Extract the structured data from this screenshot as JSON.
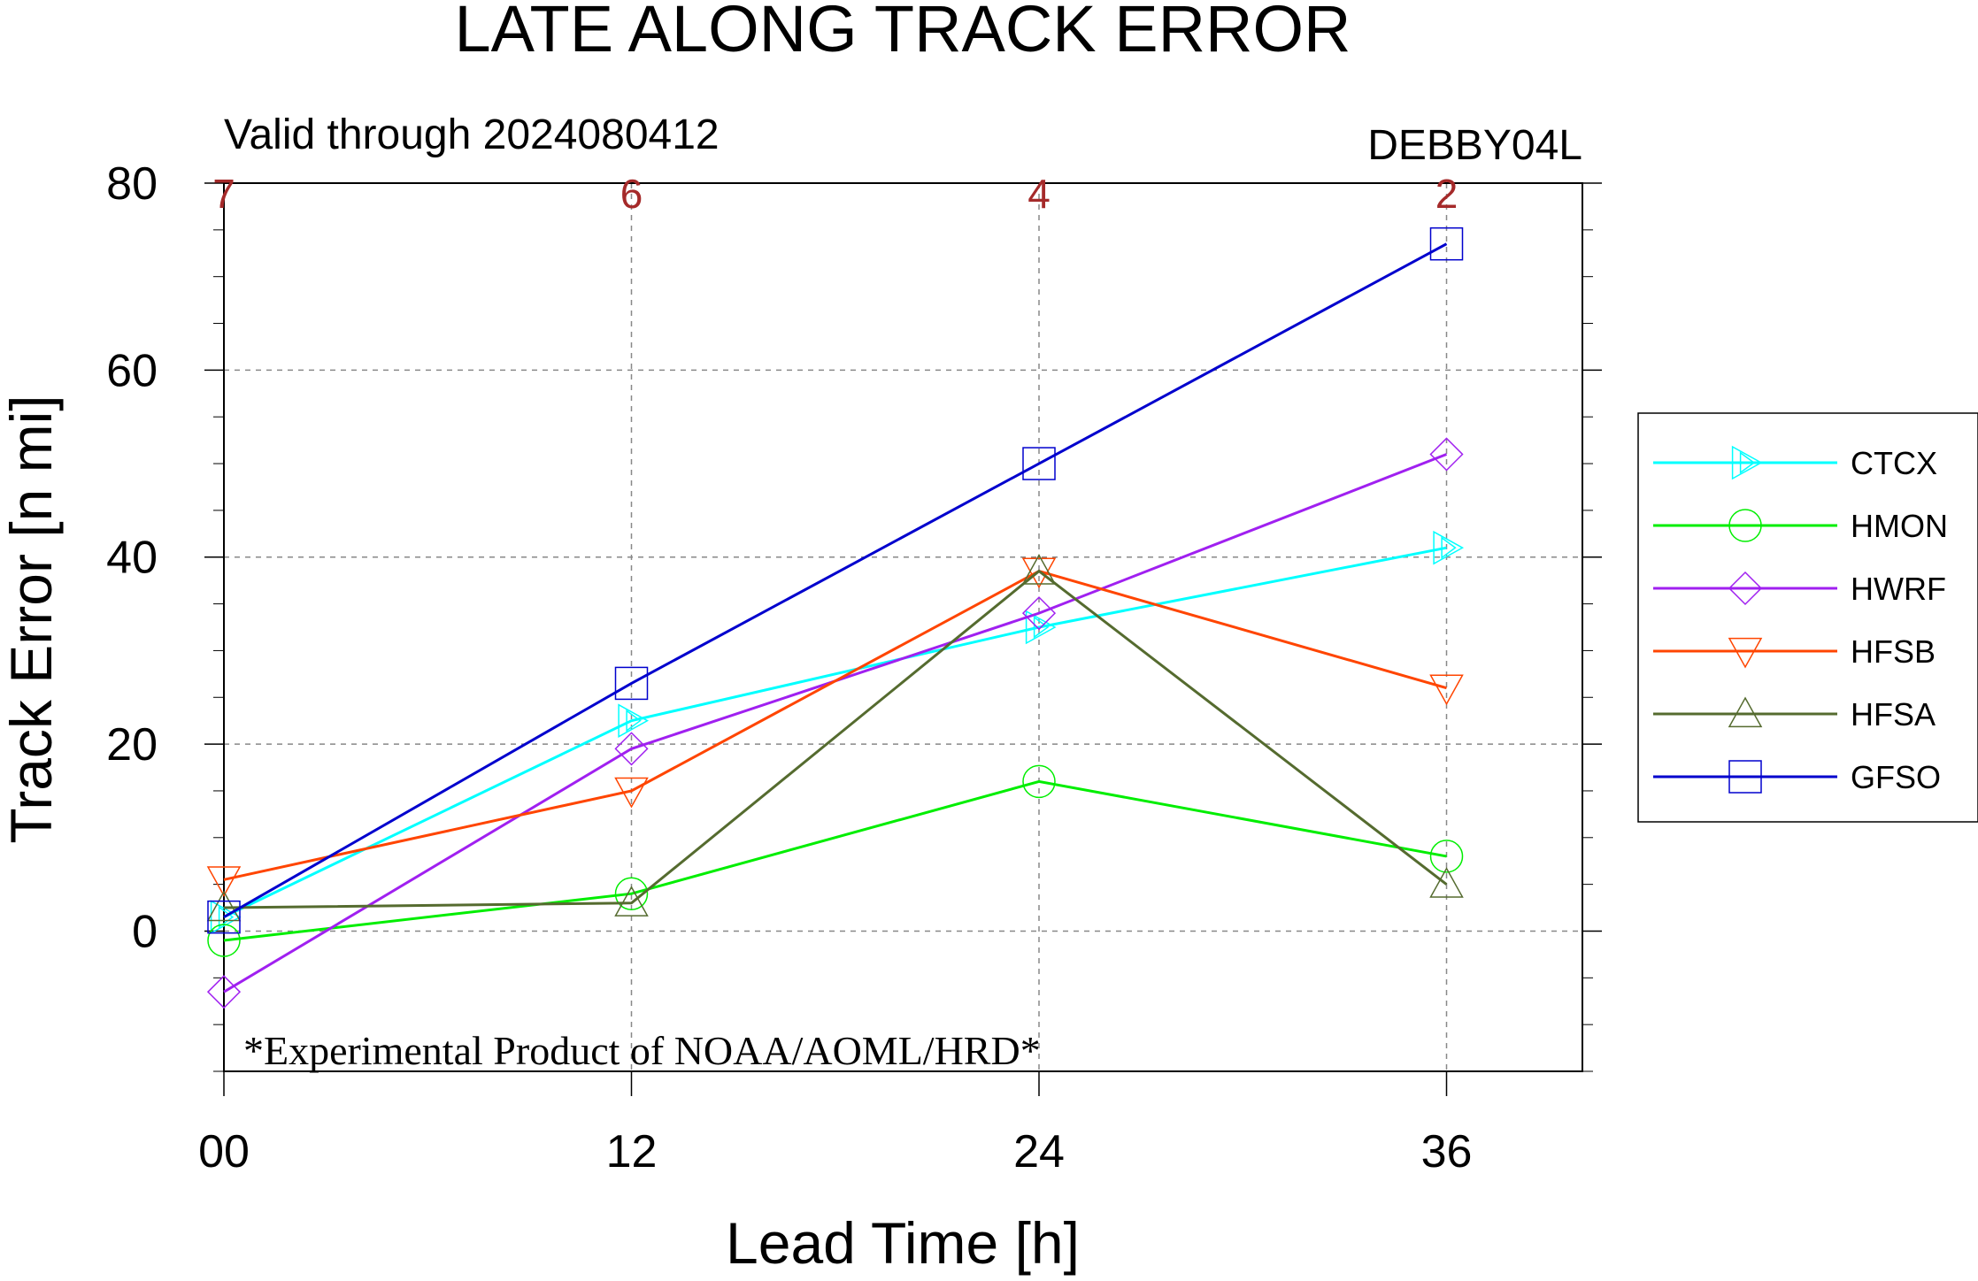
{
  "chart_data": {
    "type": "line",
    "title": "LATE ALONG TRACK ERROR",
    "subtitle_left": "Valid through 2024080412",
    "subtitle_right": "DEBBY04L",
    "xlabel": "Lead Time [h]",
    "ylabel": "Track Error [n mi]",
    "x": [
      0,
      12,
      24,
      36
    ],
    "x_tick_labels": [
      "00",
      "12",
      "24",
      "36"
    ],
    "xlim": [
      0,
      40
    ],
    "ylim": [
      -15,
      80
    ],
    "y_ticks": [
      0,
      20,
      40,
      60,
      80
    ],
    "case_counts": [
      "7",
      "6",
      "4",
      "2"
    ],
    "grid": true,
    "legend_position": "right",
    "footnote": "*Experimental Product of NOAA/AOML/HRD*",
    "series": [
      {
        "name": "CTCX",
        "color": "#00ffff",
        "marker": "triangle-right",
        "values": [
          1.5,
          22.5,
          32.5,
          41
        ]
      },
      {
        "name": "HMON",
        "color": "#00ee00",
        "marker": "circle",
        "values": [
          -1,
          4,
          16,
          8
        ]
      },
      {
        "name": "HWRF",
        "color": "#a020f0",
        "marker": "diamond",
        "values": [
          -6.5,
          19.5,
          34,
          51
        ]
      },
      {
        "name": "HFSB",
        "color": "#ff4500",
        "marker": "triangle-down",
        "values": [
          5.5,
          15,
          38.5,
          26
        ]
      },
      {
        "name": "HFSA",
        "color": "#556b2f",
        "marker": "triangle-up",
        "values": [
          2.5,
          3,
          38.5,
          5
        ]
      },
      {
        "name": "GFSO",
        "color": "#0000cd",
        "marker": "square",
        "values": [
          1.5,
          26.5,
          50,
          73.5
        ]
      }
    ]
  }
}
